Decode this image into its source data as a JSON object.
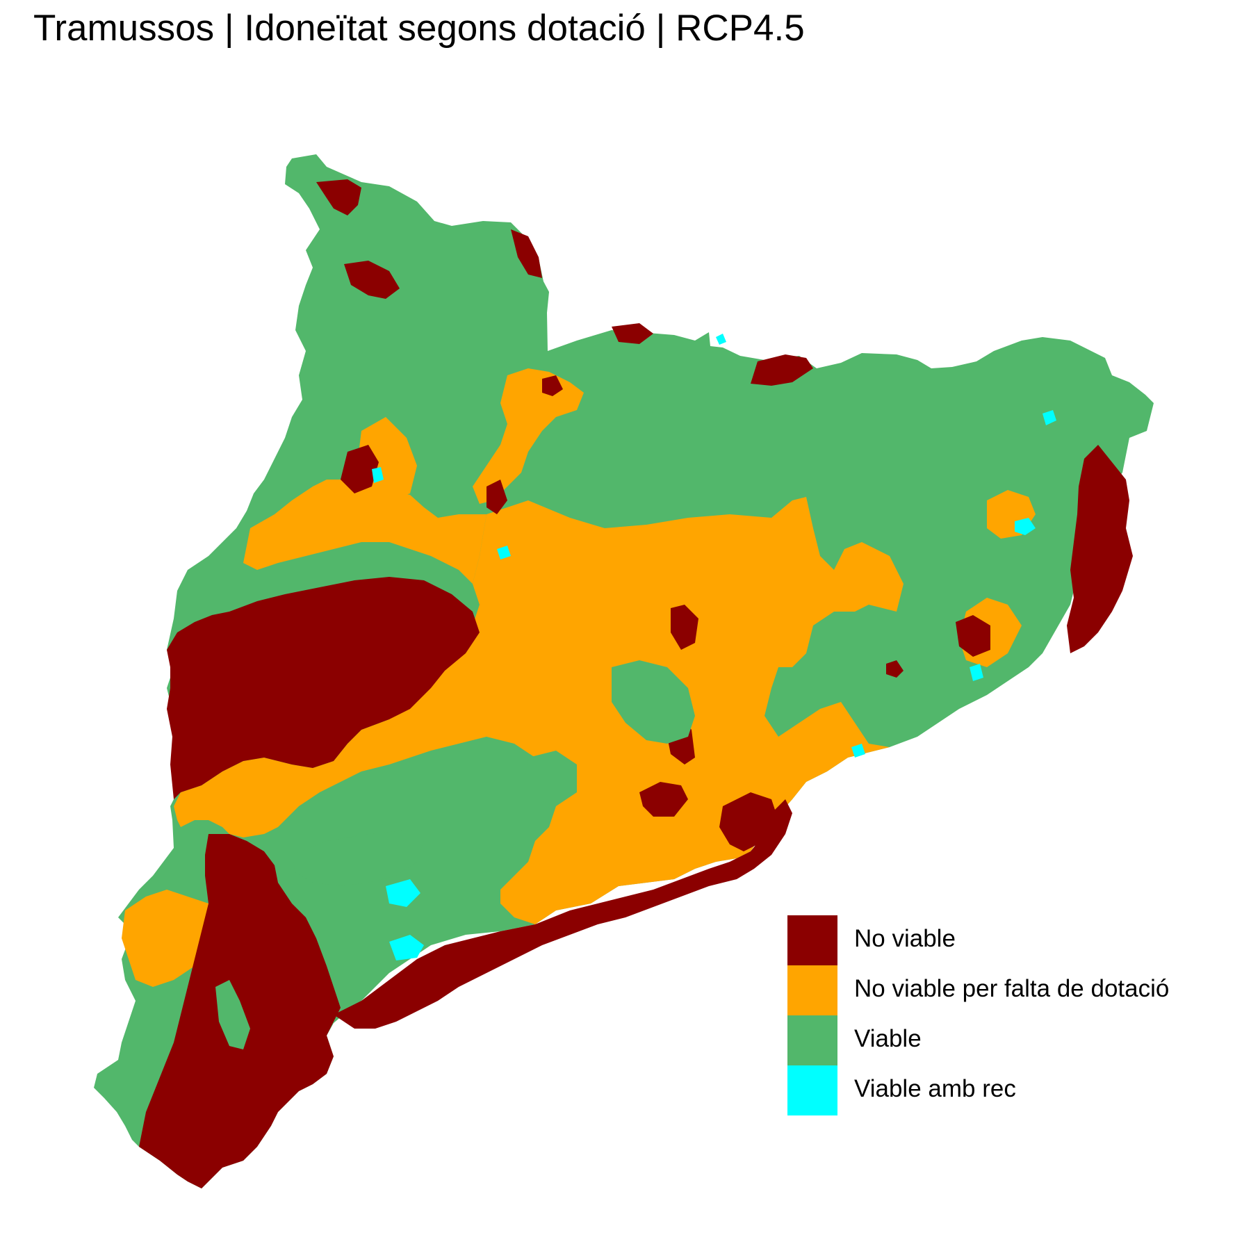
{
  "title": "Tramussos | Idoneïtat segons dotació | RCP4.5",
  "colors": {
    "no_viable": "#8b0000",
    "no_viable_dotacio": "#ffa500",
    "viable": "#52b76b",
    "viable_rec": "#00ffff",
    "background": "#ffffff"
  },
  "legend": [
    {
      "label": "No viable",
      "color": "#8b0000"
    },
    {
      "label": "No viable per falta de dotació",
      "color": "#ffa500"
    },
    {
      "label": "Viable",
      "color": "#52b76b"
    },
    {
      "label": "Viable amb rec",
      "color": "#00ffff"
    }
  ]
}
